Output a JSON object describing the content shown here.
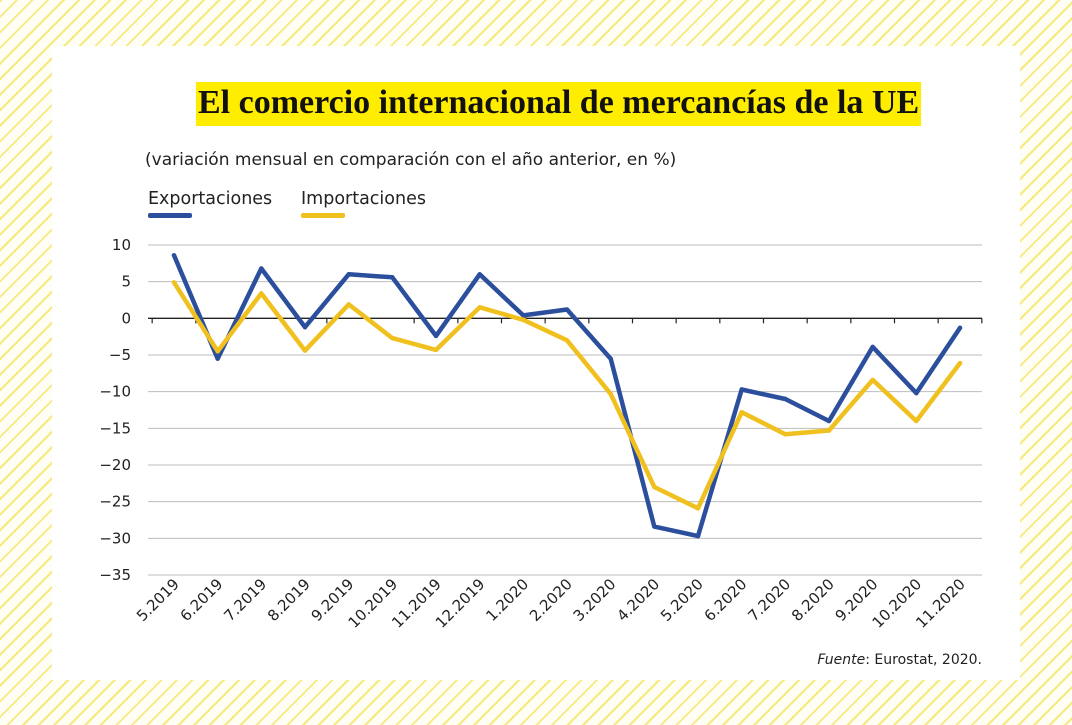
{
  "title": "El comercio internacional de mercancías de la UE",
  "subtitle": "(variación mensual en comparación con el año anterior, en %)",
  "source": {
    "prefix": "Fuente",
    "text": ": Eurostat, 2020."
  },
  "colors": {
    "exports": "#2b4f9c",
    "imports": "#f0c01e",
    "highlight": "#ffed00"
  },
  "chart_data": {
    "type": "line",
    "title": "El comercio internacional de mercancías de la UE",
    "subtitle": "(variación mensual en comparación con el año anterior, en %)",
    "xlabel": "",
    "ylabel": "",
    "ylim": [
      -35,
      10
    ],
    "yticks": [
      10,
      5,
      0,
      -5,
      -10,
      -15,
      -20,
      -25,
      -30,
      -35
    ],
    "ytick_labels": [
      "10",
      "5",
      "0",
      "−5",
      "−10",
      "−15",
      "−20",
      "−25",
      "−30",
      "−35"
    ],
    "grid": true,
    "legend": "top-left",
    "x": [
      "5.2019",
      "6.2019",
      "7.2019",
      "8.2019",
      "9.2019",
      "10.2019",
      "11.2019",
      "12.2019",
      "1.2020",
      "2.2020",
      "3.2020",
      "4.2020",
      "5.2020",
      "6.2020",
      "7.2020",
      "8.2020",
      "9.2020",
      "10.2020",
      "11.2020"
    ],
    "series": [
      {
        "name": "Exportaciones",
        "color": "#2b4f9c",
        "values": [
          8.6,
          -5.5,
          6.8,
          -1.2,
          6.0,
          5.6,
          -2.4,
          6.0,
          0.4,
          1.2,
          -5.5,
          -28.4,
          -29.7,
          -9.7,
          -11.0,
          -14.0,
          -3.9,
          -10.2,
          -1.3
        ]
      },
      {
        "name": "Importaciones",
        "color": "#f0c01e",
        "values": [
          4.9,
          -4.5,
          3.4,
          -4.4,
          1.9,
          -2.7,
          -4.3,
          1.5,
          -0.2,
          -3.0,
          -10.3,
          -23.0,
          -25.9,
          -12.8,
          -15.8,
          -15.3,
          -8.4,
          -14.0,
          -6.1
        ]
      }
    ]
  }
}
